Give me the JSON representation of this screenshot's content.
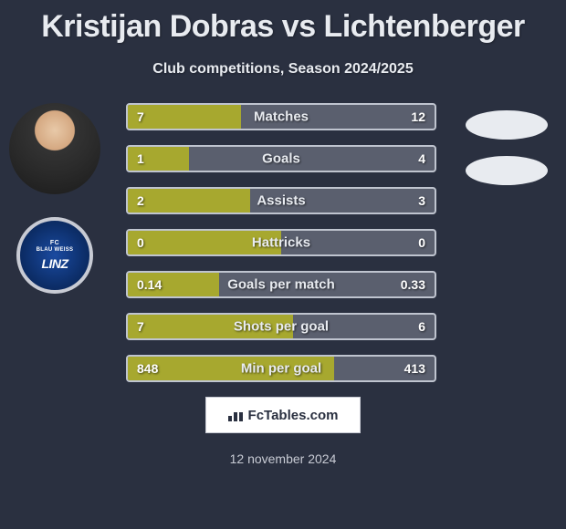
{
  "title": "Kristijan Dobras vs Lichtenberger",
  "subtitle": "Club competitions, Season 2024/2025",
  "colors": {
    "background": "#2a3040",
    "bar_fill": "#a7a82f",
    "bar_empty": "#5a5f6e",
    "bar_border": "#bfc4cf",
    "text": "#e8ebf0",
    "blob": "#e8ebf0"
  },
  "avatars": {
    "player1_alt": "Kristijan Dobras",
    "player2_club_top": "FC",
    "player2_club_mid": "BLAU WEISS",
    "player2_club_brand": "LINZ"
  },
  "bars": [
    {
      "label": "Matches",
      "left": "7",
      "right": "12",
      "fill_pct": 36.8
    },
    {
      "label": "Goals",
      "left": "1",
      "right": "4",
      "fill_pct": 20.0
    },
    {
      "label": "Assists",
      "left": "2",
      "right": "3",
      "fill_pct": 40.0
    },
    {
      "label": "Hattricks",
      "left": "0",
      "right": "0",
      "fill_pct": 50.0
    },
    {
      "label": "Goals per match",
      "left": "0.14",
      "right": "0.33",
      "fill_pct": 29.8
    },
    {
      "label": "Shots per goal",
      "left": "7",
      "right": "6",
      "fill_pct": 53.8
    },
    {
      "label": "Min per goal",
      "left": "848",
      "right": "413",
      "fill_pct": 67.2
    }
  ],
  "footer_brand": "FcTables.com",
  "footer_date": "12 november 2024"
}
